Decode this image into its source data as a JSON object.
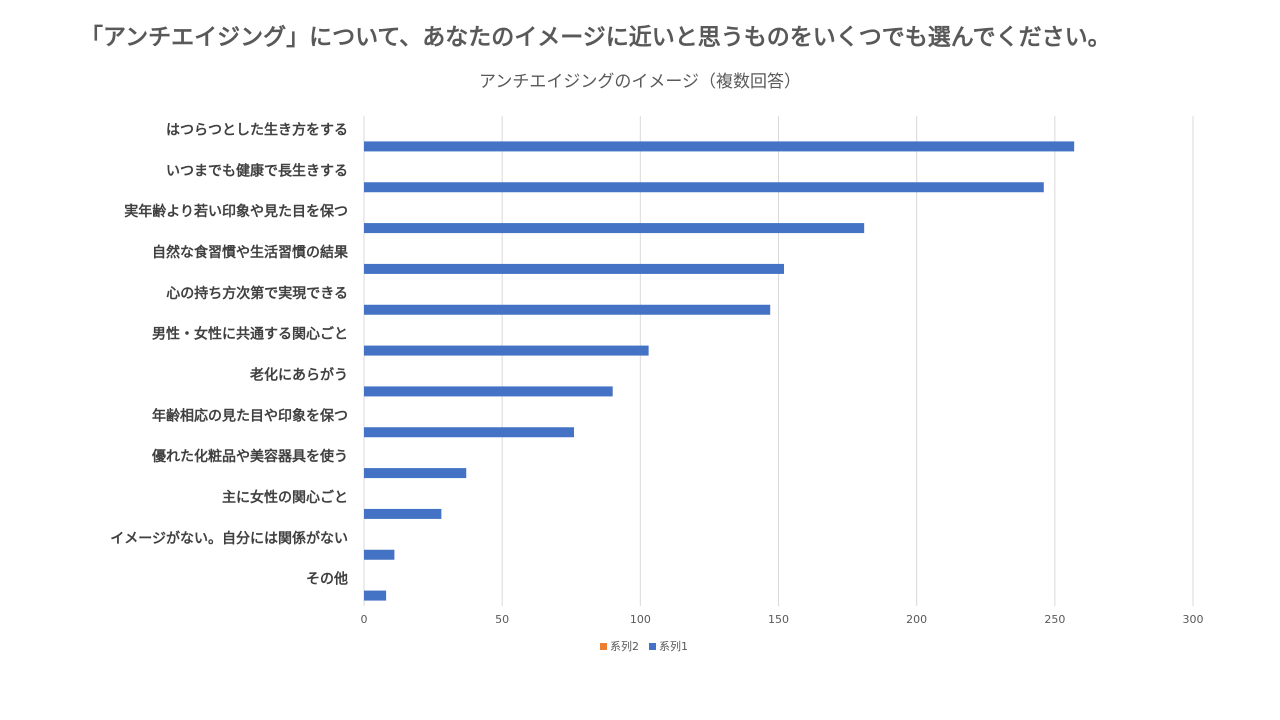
{
  "slide_title": "「アンチエイジング」について、あなたのイメージに近いと思うものをいくつでも選んでください。",
  "chart_data": {
    "type": "bar",
    "orientation": "horizontal",
    "title": "アンチエイジングのイメージ（複数回答）",
    "categories": [
      "はつらつとした生き方をする",
      "いつまでも健康で長生きする",
      "実年齢より若い印象や見た目を保つ",
      "自然な食習慣や生活習慣の結果",
      "心の持ち方次第で実現できる",
      "男性・女性に共通する関心ごと",
      "老化にあらがう",
      "年齢相応の見た目や印象を保つ",
      "優れた化粧品や美容器具を使う",
      "主に女性の関心ごと",
      "イメージがない。自分には関係がない",
      "その他"
    ],
    "series": [
      {
        "name": "系列2",
        "color": "#ed7d31",
        "values": [
          null,
          null,
          null,
          null,
          null,
          null,
          null,
          null,
          null,
          null,
          null,
          null
        ]
      },
      {
        "name": "系列1",
        "color": "#4472c4",
        "values": [
          257,
          246,
          181,
          152,
          147,
          103,
          90,
          76,
          37,
          28,
          11,
          8
        ]
      }
    ],
    "xlim": [
      0,
      300
    ],
    "xticks": [
      0,
      50,
      100,
      150,
      200,
      250,
      300
    ],
    "grid": true,
    "legend": "bottom"
  }
}
